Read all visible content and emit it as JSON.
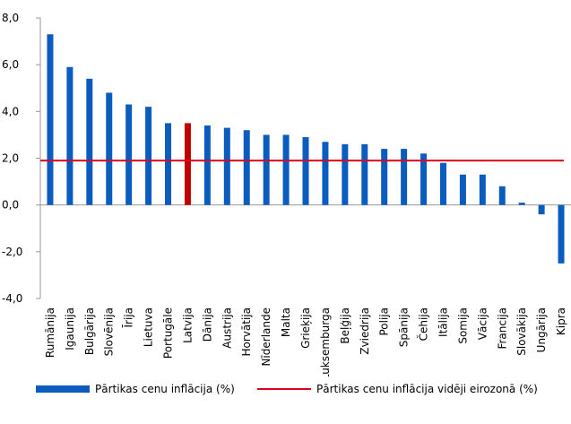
{
  "chart_data": {
    "type": "bar",
    "categories": [
      "Rumānija",
      "Igaunija",
      "Bulgārija",
      "Slovēnija",
      "Īrija",
      "Lietuva",
      "Portugāle",
      "Latvija",
      "Dānija",
      "Austrija",
      "Horvātija",
      "Nīderlande",
      "Malta",
      "Grieķija",
      "Luksemburga",
      "Beļģija",
      "Zviedrija",
      "Polija",
      "Spānija",
      "Čehija",
      "Itālija",
      "Somija",
      "Vācija",
      "Francija",
      "Slovākija",
      "Ungārija",
      "Kipra"
    ],
    "series": [
      {
        "name": "Pārtikas cenu inflācija (%)",
        "values": [
          7.3,
          5.9,
          5.4,
          4.8,
          4.3,
          4.2,
          3.5,
          3.5,
          3.4,
          3.3,
          3.2,
          3.0,
          3.0,
          2.9,
          2.7,
          2.6,
          2.6,
          2.4,
          2.4,
          2.2,
          1.8,
          1.3,
          1.3,
          0.8,
          0.1,
          -0.4,
          -2.5
        ]
      },
      {
        "name": "Pārtikas cenu inflācija vidēji eirozonā (%)",
        "values": [
          1.9,
          1.9,
          1.9,
          1.9,
          1.9,
          1.9,
          1.9,
          1.9,
          1.9,
          1.9,
          1.9,
          1.9,
          1.9,
          1.9,
          1.9,
          1.9,
          1.9,
          1.9,
          1.9,
          1.9,
          1.9,
          1.9,
          1.9,
          1.9,
          1.9,
          1.9,
          1.9
        ]
      }
    ],
    "highlight_category": "Latvija",
    "ylim": [
      -4.0,
      8.0
    ],
    "yticks": [
      "8,0",
      "6,0",
      "4,0",
      "2,0",
      "0,0",
      "-2,0",
      "-4,0"
    ],
    "ytick_values": [
      8,
      6,
      4,
      2,
      0,
      -2,
      -4
    ],
    "grid": false,
    "legend_position": "bottom",
    "colors": {
      "bar": "#0b5cbf",
      "highlight": "#c00000",
      "line": "#e0001b",
      "axis": "#999999"
    }
  },
  "legend": {
    "bar_label": "Pārtikas cenu inflācija (%)",
    "line_label": "Pārtikas cenu inflācija vidēji eirozonā (%)"
  }
}
